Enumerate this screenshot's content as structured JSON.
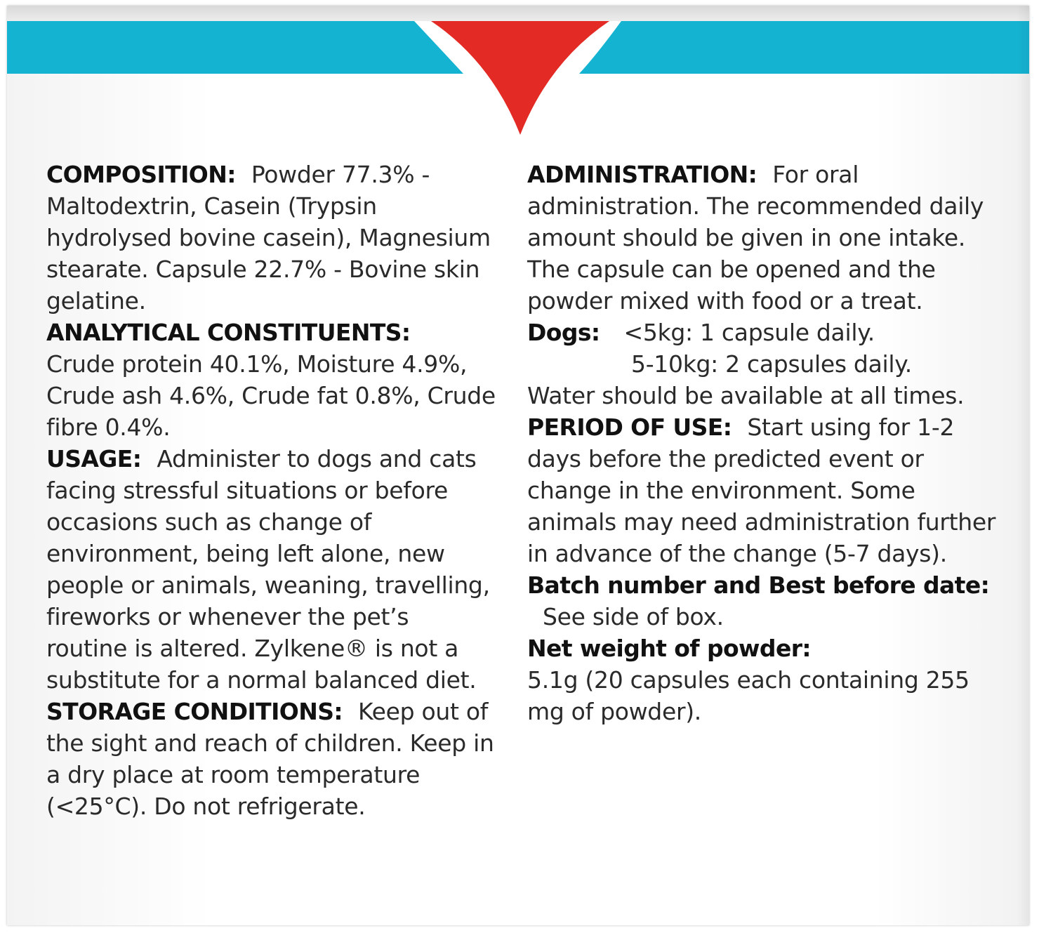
{
  "colors": {
    "band": "#15b3d2",
    "chevron": "#e32a24",
    "text": "#2a2a2a",
    "heading": "#111111"
  },
  "left": {
    "composition": {
      "heading": "COMPOSITION:",
      "text": "Powder 77.3% - Maltodextrin, Casein (Trypsin hydrolysed bovine casein), Magnesium stearate. Capsule 22.7% - Bovine skin gelatine."
    },
    "analytical": {
      "heading": "ANALYTICAL CONSTITUENTS:",
      "text": "Crude protein 40.1%, Moisture 4.9%, Crude ash 4.6%, Crude fat 0.8%, Crude fibre 0.4%."
    },
    "usage": {
      "heading": "USAGE:",
      "text": "Administer to dogs and cats facing stressful situations or before occasions such as change of environment, being left alone, new people or animals, weaning, travelling, fireworks or whenever the pet’s routine is altered.  Zylkene® is not a substitute for a normal balanced diet."
    },
    "storage": {
      "heading": "STORAGE CONDITIONS:",
      "text": "Keep out of the sight and reach of children. Keep in a dry place at room temperature (<25°C). Do not refrigerate."
    }
  },
  "right": {
    "administration": {
      "heading": "ADMINISTRATION:",
      "text": "For oral administration. The recommended daily amount should be given in one intake. The capsule can be opened and the powder mixed with food or a treat."
    },
    "dogs": {
      "heading": "Dogs:",
      "line1": "<5kg: 1 capsule daily.",
      "line2": "5-10kg: 2 capsules daily.",
      "water": "Water should be available at all times."
    },
    "period": {
      "heading": "PERIOD OF USE:",
      "text": "Start using for 1-2 days before the predicted event or change in the environment. Some animals may need administration further in advance of the change (5-7 days)."
    },
    "batch": {
      "heading": "Batch number and Best before date:",
      "text": "See side of box."
    },
    "net_weight": {
      "heading": "Net weight of powder:",
      "text": "5.1g (20 capsules each containing 255 mg of powder)."
    }
  }
}
